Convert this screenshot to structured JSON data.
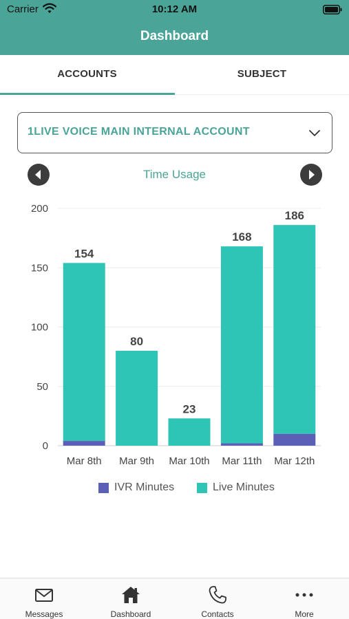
{
  "status_bar": {
    "carrier": "Carrier",
    "time": "10:12 AM"
  },
  "header": {
    "title": "Dashboard"
  },
  "tabs": [
    {
      "label": "ACCOUNTS",
      "selected": true
    },
    {
      "label": "SUBJECT",
      "selected": false
    }
  ],
  "account_select": {
    "value": "1LIVE VOICE MAIN INTERNAL ACCOUNT"
  },
  "chart_nav": {
    "title": "Time Usage"
  },
  "colors": {
    "accent": "#4aa497",
    "live": "#2ec4b6",
    "ivr": "#5b5fb5"
  },
  "chart_data": {
    "type": "bar",
    "stacked": true,
    "categories": [
      "Mar 8th",
      "Mar 9th",
      "Mar 10th",
      "Mar 11th",
      "Mar 12th"
    ],
    "series": [
      {
        "name": "IVR Minutes",
        "values": [
          4,
          0,
          0,
          2,
          10
        ]
      },
      {
        "name": "Live Minutes",
        "values": [
          150,
          80,
          23,
          166,
          176
        ]
      }
    ],
    "totals": [
      154,
      80,
      23,
      168,
      186
    ],
    "y_ticks": [
      0,
      50,
      100,
      150,
      200
    ],
    "ylim": [
      0,
      200
    ],
    "grid": true,
    "legend": "bottom"
  },
  "tab_bar": {
    "items": [
      {
        "label": "Messages",
        "icon": "envelope-icon"
      },
      {
        "label": "Dashboard",
        "icon": "home-icon"
      },
      {
        "label": "Contacts",
        "icon": "phone-icon"
      },
      {
        "label": "More",
        "icon": "more-icon"
      }
    ]
  }
}
